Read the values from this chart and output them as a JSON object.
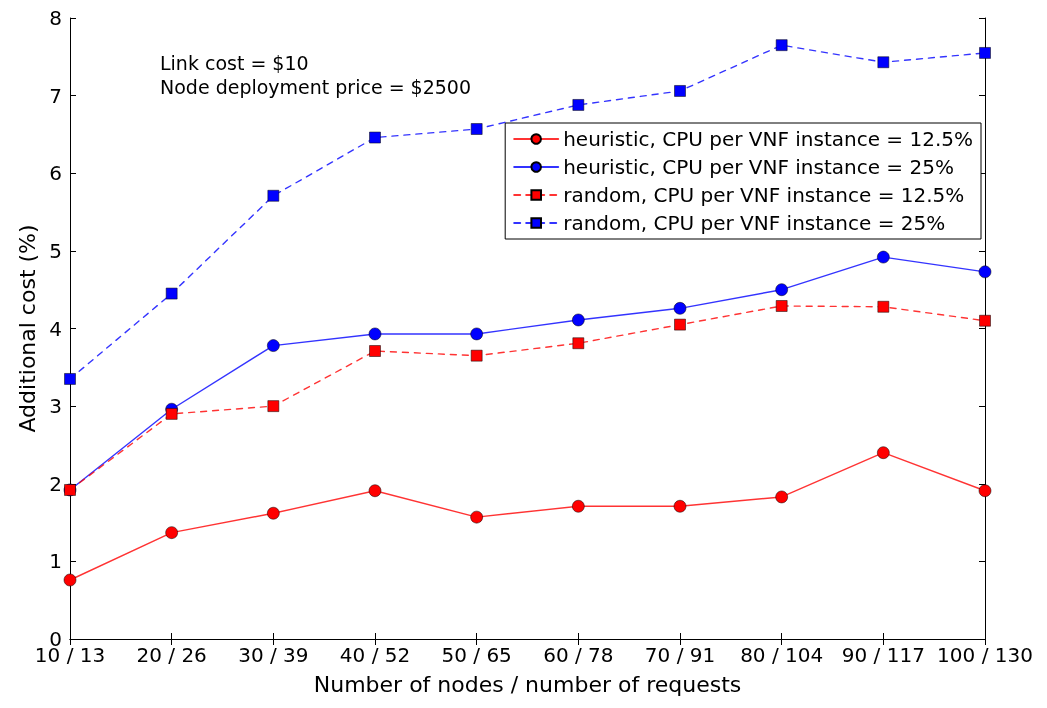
{
  "chart_data": {
    "type": "line",
    "xlabel": "Number of nodes / number of requests",
    "ylabel": "Additional cost (%)",
    "annotations": [
      "Link cost = $10",
      "Node deployment price = $2500"
    ],
    "categories": [
      "10 / 13",
      "20 / 26",
      "30 / 39",
      "40 / 52",
      "50 / 65",
      "60 / 78",
      "70 / 91",
      "80 / 104",
      "90 / 117",
      "100 / 130"
    ],
    "series": [
      {
        "name": "heuristic, CPU per VNF instance = 12.5%",
        "color": "#ff0000",
        "marker": "circle",
        "line_style": "solid",
        "values": [
          0.76,
          1.37,
          1.62,
          1.91,
          1.57,
          1.71,
          1.71,
          1.83,
          2.4,
          1.91
        ]
      },
      {
        "name": "heuristic, CPU per VNF instance = 25%",
        "color": "#0000ff",
        "marker": "circle",
        "line_style": "solid",
        "values": [
          1.92,
          2.96,
          3.78,
          3.93,
          3.93,
          4.11,
          4.26,
          4.5,
          4.92,
          4.73
        ]
      },
      {
        "name": "random, CPU per VNF instance = 12.5%",
        "color": "#ff0000",
        "marker": "square",
        "line_style": "dashed",
        "values": [
          1.92,
          2.9,
          3.0,
          3.71,
          3.65,
          3.81,
          4.05,
          4.29,
          4.28,
          4.1
        ]
      },
      {
        "name": "random, CPU per VNF instance = 25%",
        "color": "#0000ff",
        "marker": "square",
        "line_style": "dashed",
        "values": [
          3.35,
          4.45,
          5.71,
          6.46,
          6.57,
          6.88,
          7.06,
          7.65,
          7.43,
          7.55
        ]
      }
    ],
    "ylim": [
      0,
      8
    ],
    "yticks": [
      0,
      1,
      2,
      3,
      4,
      5,
      6,
      7,
      8
    ],
    "legend": "top right"
  }
}
